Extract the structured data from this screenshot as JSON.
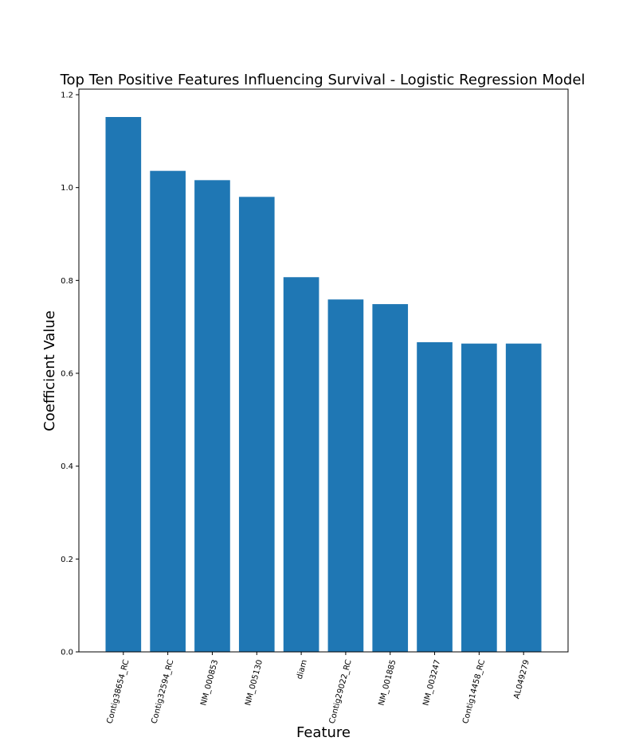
{
  "chart_data": {
    "type": "bar",
    "title": "Top Ten Positive Features Influencing Survival - Logistic Regression Model",
    "xlabel": "Feature",
    "ylabel": "Coefficient Value",
    "categories": [
      "Contig38654_RC",
      "Contig32594_RC",
      "NM_000853",
      "NM_005130",
      "diam",
      "Contig29022_RC",
      "NM_001885",
      "NM_003247",
      "Contig14458_RC",
      "AL049279"
    ],
    "values": [
      1.152,
      1.036,
      1.016,
      0.98,
      0.807,
      0.759,
      0.749,
      0.667,
      0.664,
      0.664
    ],
    "ylim": [
      0,
      1.212
    ],
    "yticks": [
      "0.0",
      "0.2",
      "0.4",
      "0.6",
      "0.8",
      "1.0",
      "1.2"
    ],
    "bar_color": "#1f77b4",
    "grid": false,
    "legend": "none"
  }
}
